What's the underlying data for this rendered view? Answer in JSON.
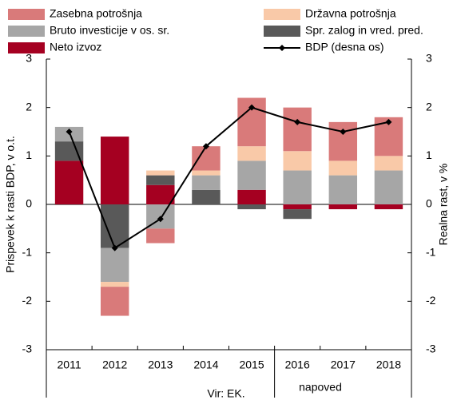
{
  "chart_data": {
    "type": "bar",
    "stacked": true,
    "y_label": "Prispevek k rasti BDP, v o.t.",
    "y2_label": "Realna rast, v %",
    "annotations": [
      "napoved",
      "Vir: EK."
    ],
    "categories": [
      "2011",
      "2012",
      "2013",
      "2014",
      "2015",
      "2016",
      "2017",
      "2018"
    ],
    "series": [
      {
        "name": "Zasebna potrošnja",
        "color": "#d97a7a",
        "values": [
          0,
          -0.6,
          -0.3,
          0.5,
          1.0,
          0.9,
          0.8,
          0.8
        ]
      },
      {
        "name": "Državna potrošnja",
        "color": "#f9c9a8",
        "values": [
          0,
          -0.1,
          0.1,
          0.1,
          0.3,
          0.4,
          0.3,
          0.3
        ]
      },
      {
        "name": "Bruto investicije v os. sr.",
        "color": "#a6a6a6",
        "values": [
          0.3,
          -0.7,
          -0.5,
          0.3,
          0.6,
          0.7,
          0.6,
          0.7
        ]
      },
      {
        "name": "Spr. zalog in vred. pred.",
        "color": "#595959",
        "values": [
          0.4,
          -0.9,
          0.2,
          0.3,
          -0.1,
          -0.2,
          0,
          0
        ]
      },
      {
        "name": "Neto izvoz",
        "color": "#a50021",
        "values": [
          0.9,
          1.4,
          0.4,
          0,
          0.3,
          -0.1,
          -0.1,
          -0.1
        ]
      },
      {
        "name": "BDP (desna os)",
        "color": "#000000",
        "type": "line",
        "axis": "y2",
        "values": [
          1.5,
          -0.9,
          -0.3,
          1.2,
          2.0,
          1.7,
          1.5,
          1.7
        ]
      }
    ],
    "ylim": [
      -3,
      3
    ],
    "yticks": [
      -3,
      -2,
      -1,
      0,
      1,
      2,
      3
    ],
    "y2lim": [
      -3,
      3
    ],
    "y2ticks": [
      -3,
      -2,
      -1,
      0,
      1,
      2,
      3
    ],
    "grid": false
  }
}
